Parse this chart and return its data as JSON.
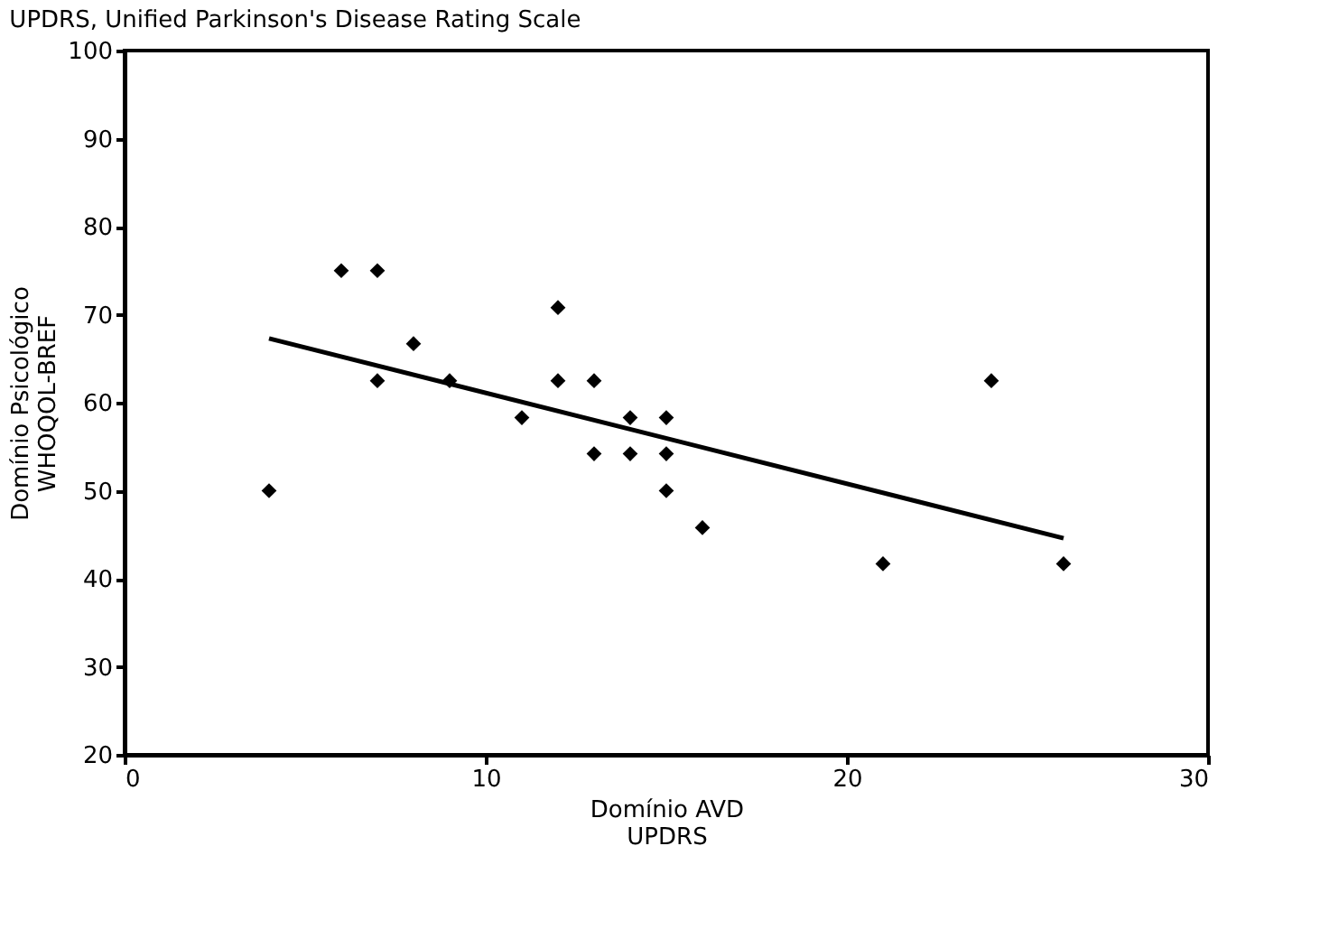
{
  "chart_data": {
    "type": "scatter",
    "xlabel": "Domínio AVD\nUPDRS",
    "ylabel": "Domínio Psicológico\nWHOQOL-BREF",
    "annotations": [
      "UPDRS, Unified Parkinson's Disease Rating Scale"
    ],
    "series": [
      {
        "color": "#000000",
        "marker": "diamond",
        "x": [
          4,
          6,
          7,
          7,
          8,
          9,
          11,
          12,
          12,
          13,
          13,
          14,
          14,
          15,
          15,
          15,
          16,
          21,
          24,
          26
        ],
        "values": [
          50,
          75,
          75,
          62.5,
          66.7,
          62.5,
          58.3,
          70.8,
          62.5,
          62.5,
          54.2,
          58.3,
          54.2,
          58.3,
          54.2,
          50,
          45.8,
          41.7,
          62.5,
          41.7
        ]
      },
      {
        "type": "line",
        "color": "#000000",
        "line_style": "solid",
        "x": [
          4,
          26
        ],
        "values": [
          67.3,
          44.6
        ]
      }
    ],
    "xlim": [
      0,
      30
    ],
    "xticks": [
      0,
      10,
      20,
      30
    ],
    "ylim": [
      20,
      100
    ],
    "yticks": [
      20,
      30,
      40,
      50,
      60,
      70,
      80,
      90,
      100
    ],
    "grid": false
  }
}
